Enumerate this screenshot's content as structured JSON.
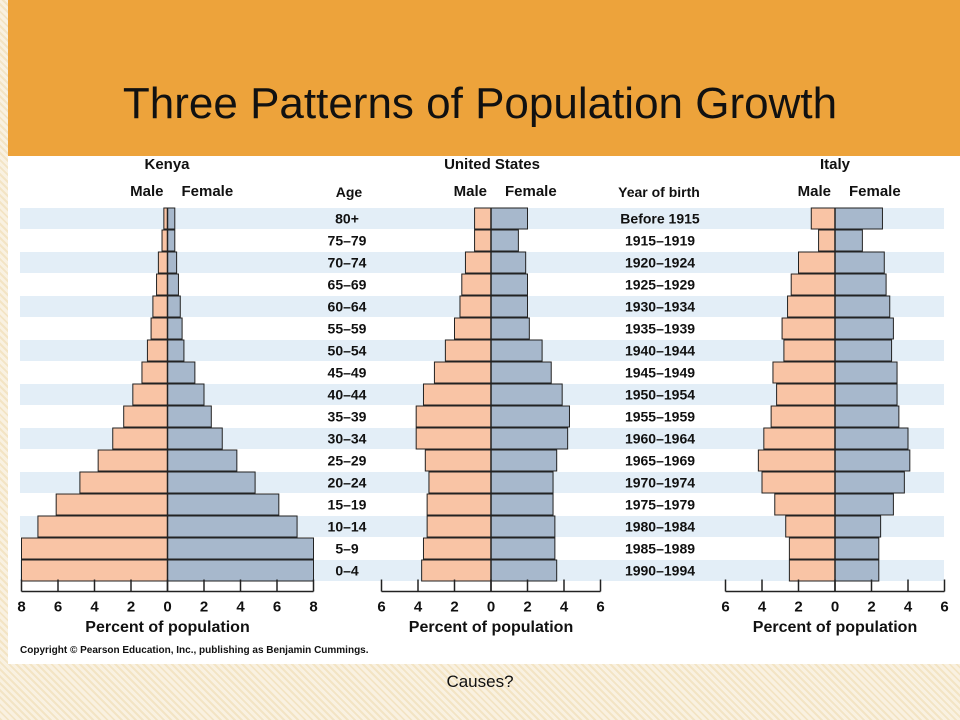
{
  "slide": {
    "title": "Three Patterns of Population Growth",
    "footer": "Causes?",
    "copyright": "Copyright © Pearson Education, Inc., publishing as Benjamin Cummings."
  },
  "colors": {
    "male": "#f9c4a5",
    "female": "#a7b8cc",
    "row_band": "#e3eef7",
    "header": "#eda33b"
  },
  "labels": {
    "age_header": "Age",
    "birth_header": "Year of birth",
    "male": "Male",
    "female": "Female",
    "xlabel": "Percent of population"
  },
  "chart_data": {
    "type": "bar",
    "orientation": "horizontal-butterfly",
    "ages": [
      "80+",
      "75–79",
      "70–74",
      "65–69",
      "60–64",
      "55–59",
      "50–54",
      "45–49",
      "40–44",
      "35–39",
      "30–34",
      "25–29",
      "20–24",
      "15–19",
      "10–14",
      "5–9",
      "0–4"
    ],
    "years_of_birth": [
      "Before 1915",
      "1915–1919",
      "1920–1924",
      "1925–1929",
      "1930–1934",
      "1935–1939",
      "1940–1944",
      "1945–1949",
      "1950–1954",
      "1955–1959",
      "1960–1964",
      "1965–1969",
      "1970–1974",
      "1975–1979",
      "1980–1984",
      "1985–1989",
      "1990–1994"
    ],
    "charts": [
      {
        "name": "Kenya",
        "xlim": 8,
        "ticks": [
          8,
          6,
          4,
          2,
          0,
          2,
          4,
          6,
          8
        ],
        "male": [
          0.2,
          0.3,
          0.5,
          0.6,
          0.8,
          0.9,
          1.1,
          1.4,
          1.9,
          2.4,
          3.0,
          3.8,
          4.8,
          6.1,
          7.1,
          8.0,
          8.0
        ],
        "female": [
          0.4,
          0.4,
          0.5,
          0.6,
          0.7,
          0.8,
          0.9,
          1.5,
          2.0,
          2.4,
          3.0,
          3.8,
          4.8,
          6.1,
          7.1,
          8.0,
          8.0
        ]
      },
      {
        "name": "United States",
        "xlim": 6,
        "ticks": [
          6,
          4,
          2,
          0,
          2,
          4,
          6
        ],
        "male": [
          0.9,
          0.9,
          1.4,
          1.6,
          1.7,
          2.0,
          2.5,
          3.1,
          3.7,
          4.1,
          4.1,
          3.6,
          3.4,
          3.5,
          3.5,
          3.7,
          3.8
        ],
        "female": [
          2.0,
          1.5,
          1.9,
          2.0,
          2.0,
          2.1,
          2.8,
          3.3,
          3.9,
          4.3,
          4.2,
          3.6,
          3.4,
          3.4,
          3.5,
          3.5,
          3.6
        ]
      },
      {
        "name": "Italy",
        "xlim": 6,
        "ticks": [
          6,
          4,
          2,
          0,
          2,
          4,
          6
        ],
        "male": [
          1.3,
          0.9,
          2.0,
          2.4,
          2.6,
          2.9,
          2.8,
          3.4,
          3.2,
          3.5,
          3.9,
          4.2,
          4.0,
          3.3,
          2.7,
          2.5,
          2.5
        ],
        "female": [
          2.6,
          1.5,
          2.7,
          2.8,
          3.0,
          3.2,
          3.1,
          3.4,
          3.4,
          3.5,
          4.0,
          4.1,
          3.8,
          3.2,
          2.5,
          2.4,
          2.4
        ]
      }
    ]
  }
}
